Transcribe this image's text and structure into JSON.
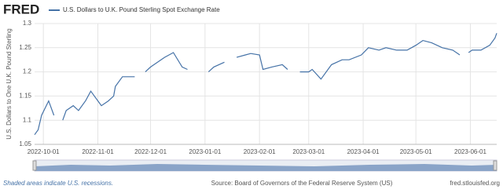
{
  "chart_data": {
    "type": "line",
    "logo": "FRED",
    "y_label": "U.S. Dollars to One U.K. Pound Sterling",
    "note": "Shaded areas indicate U.S. recessions.",
    "source": "Source: Board of Governors of the Federal Reserve System (US)",
    "site": "fred.stlouisfed.org",
    "x": [
      "2022-09-26",
      "2022-09-28",
      "2022-09-30",
      "2022-10-04",
      "2022-10-07",
      "2022-10-10",
      "2022-10-12",
      "2022-10-14",
      "2022-10-18",
      "2022-10-21",
      "2022-10-25",
      "2022-10-28",
      "2022-11-03",
      "2022-11-07",
      "2022-11-10",
      "2022-11-11",
      "2022-11-15",
      "2022-11-18",
      "2022-11-22",
      "2022-11-24",
      "2022-11-28",
      "2022-12-01",
      "2022-12-05",
      "2022-12-09",
      "2022-12-14",
      "2022-12-19",
      "2022-12-22",
      "2022-12-26",
      "2023-01-03",
      "2023-01-06",
      "2023-01-12",
      "2023-01-16",
      "2023-01-19",
      "2023-01-24",
      "2023-01-27",
      "2023-02-01",
      "2023-02-03",
      "2023-02-08",
      "2023-02-14",
      "2023-02-17",
      "2023-02-20",
      "2023-02-24",
      "2023-03-01",
      "2023-03-03",
      "2023-03-08",
      "2023-03-14",
      "2023-03-20",
      "2023-03-24",
      "2023-03-31",
      "2023-04-04",
      "2023-04-10",
      "2023-04-14",
      "2023-04-20",
      "2023-04-26",
      "2023-05-01",
      "2023-05-05",
      "2023-05-10",
      "2023-05-16",
      "2023-05-22",
      "2023-05-26",
      "2023-05-29",
      "2023-05-31",
      "2023-06-02",
      "2023-06-07",
      "2023-06-12",
      "2023-06-15",
      "2023-06-16"
    ],
    "series": [
      {
        "name": "U.S. Dollars to U.K. Pound Sterling Spot Exchange Rate",
        "color": "#4572a7",
        "values": [
          1.07,
          1.08,
          1.11,
          1.14,
          1.11,
          null,
          1.1,
          1.12,
          1.13,
          1.12,
          1.14,
          1.16,
          1.13,
          1.14,
          1.15,
          1.17,
          1.19,
          1.19,
          1.19,
          null,
          1.2,
          1.21,
          1.22,
          1.23,
          1.24,
          1.21,
          1.205,
          null,
          1.2,
          1.21,
          1.22,
          null,
          1.23,
          1.235,
          1.238,
          1.235,
          1.205,
          1.21,
          1.215,
          1.205,
          null,
          1.2,
          1.2,
          1.205,
          1.185,
          1.215,
          1.225,
          1.225,
          1.235,
          1.25,
          1.245,
          1.25,
          1.245,
          1.245,
          1.255,
          1.265,
          1.26,
          1.25,
          1.245,
          1.235,
          null,
          1.24,
          1.245,
          1.245,
          1.255,
          1.27,
          1.28
        ]
      }
    ],
    "xlim": [
      "2022-09-26",
      "2023-06-16"
    ],
    "xticks": [
      "2022-10-01",
      "2022-11-01",
      "2022-12-01",
      "2023-01-01",
      "2023-02-01",
      "2023-03-01",
      "2023-04-01",
      "2023-05-01",
      "2023-06-01"
    ],
    "ylim": [
      1.05,
      1.3
    ],
    "yticks": [
      1.05,
      1.1,
      1.15,
      1.2,
      1.25,
      1.3
    ],
    "grid": true
  }
}
